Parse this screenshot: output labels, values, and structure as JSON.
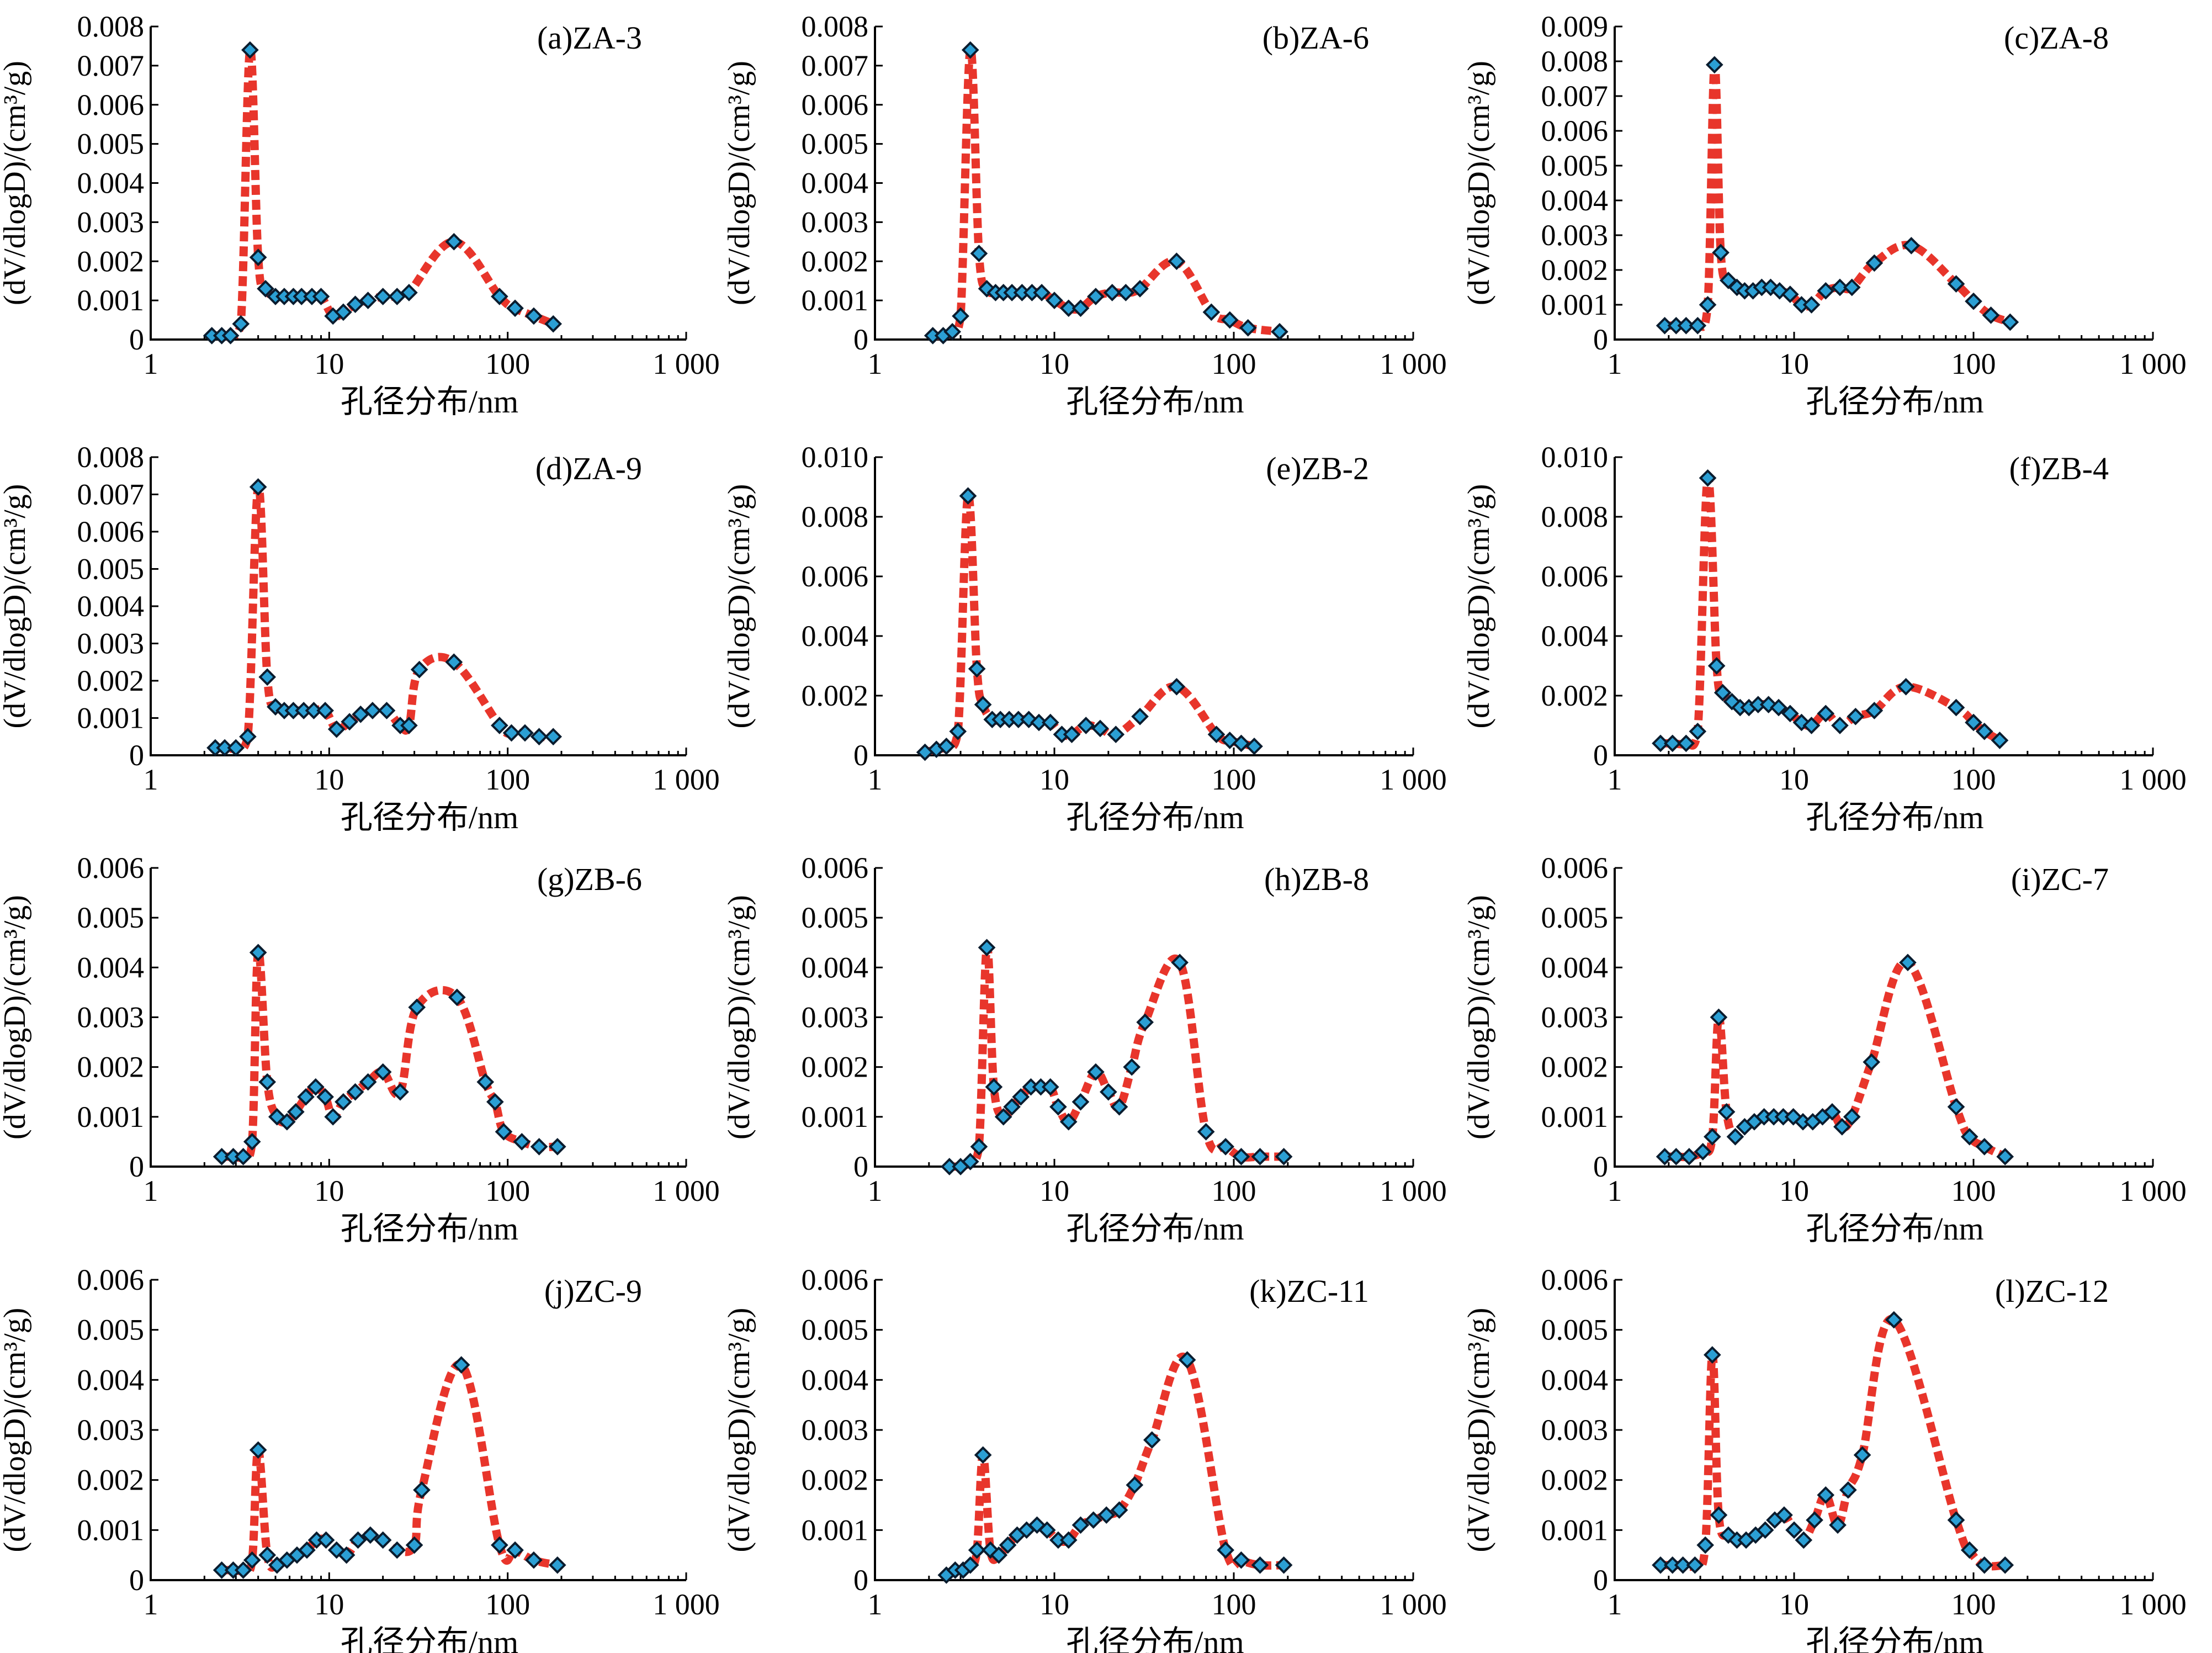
{
  "figure": {
    "colors": {
      "fit_line": "#e8352b",
      "marker_fill": "#2b9fd4",
      "marker_edge": "#0a1c2e",
      "axis": "#000000"
    },
    "marker_shape": "diamond"
  },
  "chart_data": [
    {
      "type": "line",
      "panel": "(a)ZA-3",
      "xlabel": "孔径分布/nm",
      "ylabel": "(dV/dlogD)/(cm³/g)",
      "x_scale": "log",
      "xlim": [
        1,
        1000
      ],
      "x_ticks": [
        1,
        10,
        100,
        1000
      ],
      "x_tick_labels": [
        "1",
        "10",
        "100",
        "1 000"
      ],
      "ylim": [
        0,
        0.008
      ],
      "y_ticks": [
        0,
        0.001,
        0.002,
        0.003,
        0.004,
        0.005,
        0.006,
        0.007,
        0.008
      ],
      "y_tick_labels": [
        "0",
        "0.001",
        "0.002",
        "0.003",
        "0.004",
        "0.005",
        "0.006",
        "0.007",
        "0.008"
      ],
      "x": [
        2.2,
        2.5,
        2.8,
        3.2,
        3.6,
        4.0,
        4.4,
        5.0,
        5.6,
        6.3,
        7.0,
        8.0,
        9.0,
        10.5,
        12.0,
        14.0,
        16.5,
        20.0,
        24.0,
        28.0,
        50.0,
        90.0,
        110.0,
        140.0,
        180.0
      ],
      "y": [
        0.0001,
        0.0001,
        0.0001,
        0.0004,
        0.0074,
        0.0021,
        0.0013,
        0.0011,
        0.0011,
        0.0011,
        0.0011,
        0.0011,
        0.0011,
        0.0006,
        0.0007,
        0.0009,
        0.001,
        0.0011,
        0.0011,
        0.0012,
        0.0025,
        0.0011,
        0.0008,
        0.0006,
        0.0004
      ]
    },
    {
      "type": "line",
      "panel": "(b)ZA-6",
      "xlabel": "孔径分布/nm",
      "ylabel": "(dV/dlogD)/(cm³/g)",
      "x_scale": "log",
      "xlim": [
        1,
        1000
      ],
      "x_ticks": [
        1,
        10,
        100,
        1000
      ],
      "x_tick_labels": [
        "1",
        "10",
        "100",
        "1 000"
      ],
      "ylim": [
        0,
        0.008
      ],
      "y_ticks": [
        0,
        0.001,
        0.002,
        0.003,
        0.004,
        0.005,
        0.006,
        0.007,
        0.008
      ],
      "y_tick_labels": [
        "0",
        "0.001",
        "0.002",
        "0.003",
        "0.004",
        "0.005",
        "0.006",
        "0.007",
        "0.008"
      ],
      "x": [
        2.1,
        2.4,
        2.7,
        3.0,
        3.4,
        3.8,
        4.2,
        4.7,
        5.2,
        5.8,
        6.6,
        7.5,
        8.5,
        10.0,
        12.0,
        14.0,
        17.0,
        21.0,
        25.0,
        30.0,
        48.0,
        75.0,
        95.0,
        120.0,
        180.0
      ],
      "y": [
        0.0001,
        0.0001,
        0.0002,
        0.0006,
        0.0074,
        0.0022,
        0.0013,
        0.0012,
        0.0012,
        0.0012,
        0.0012,
        0.0012,
        0.0012,
        0.001,
        0.0008,
        0.0008,
        0.0011,
        0.0012,
        0.0012,
        0.0013,
        0.002,
        0.0007,
        0.0005,
        0.0003,
        0.0002
      ]
    },
    {
      "type": "line",
      "panel": "(c)ZA-8",
      "xlabel": "孔径分布/nm",
      "ylabel": "(dV/dlogD)/(cm³/g)",
      "x_scale": "log",
      "xlim": [
        1,
        1000
      ],
      "x_ticks": [
        1,
        10,
        100,
        1000
      ],
      "x_tick_labels": [
        "1",
        "10",
        "100",
        "1 000"
      ],
      "ylim": [
        0,
        0.009
      ],
      "y_ticks": [
        0,
        0.001,
        0.002,
        0.003,
        0.004,
        0.005,
        0.006,
        0.007,
        0.008,
        0.009
      ],
      "y_tick_labels": [
        "0",
        "0.001",
        "0.002",
        "0.003",
        "0.004",
        "0.005",
        "0.006",
        "0.007",
        "0.008",
        "0.009"
      ],
      "x": [
        1.9,
        2.2,
        2.5,
        2.9,
        3.3,
        3.6,
        3.9,
        4.3,
        4.8,
        5.3,
        5.9,
        6.6,
        7.4,
        8.3,
        9.5,
        11.0,
        12.5,
        15.0,
        18.0,
        21.0,
        28.0,
        45.0,
        80.0,
        100.0,
        125.0,
        160.0
      ],
      "y": [
        0.0004,
        0.0004,
        0.0004,
        0.0004,
        0.001,
        0.0079,
        0.0025,
        0.0017,
        0.0015,
        0.0014,
        0.0014,
        0.0015,
        0.0015,
        0.0014,
        0.0013,
        0.001,
        0.001,
        0.0014,
        0.0015,
        0.0015,
        0.0022,
        0.0027,
        0.0016,
        0.0011,
        0.0007,
        0.0005
      ]
    },
    {
      "type": "line",
      "panel": "(d)ZA-9",
      "xlabel": "孔径分布/nm",
      "ylabel": "(dV/dlogD)/(cm³/g)",
      "x_scale": "log",
      "xlim": [
        1,
        1000
      ],
      "x_ticks": [
        1,
        10,
        100,
        1000
      ],
      "x_tick_labels": [
        "1",
        "10",
        "100",
        "1 000"
      ],
      "ylim": [
        0,
        0.008
      ],
      "y_ticks": [
        0,
        0.001,
        0.002,
        0.003,
        0.004,
        0.005,
        0.006,
        0.007,
        0.008
      ],
      "y_tick_labels": [
        "0",
        "0.001",
        "0.002",
        "0.003",
        "0.004",
        "0.005",
        "0.006",
        "0.007",
        "0.008"
      ],
      "x": [
        2.3,
        2.6,
        3.0,
        3.5,
        4.0,
        4.5,
        5.0,
        5.6,
        6.3,
        7.2,
        8.2,
        9.5,
        11.0,
        13.0,
        15.0,
        17.5,
        21.0,
        25.0,
        28.0,
        32.0,
        50.0,
        90.0,
        105.0,
        125.0,
        150.0,
        180.0
      ],
      "y": [
        0.0002,
        0.0002,
        0.0002,
        0.0005,
        0.0072,
        0.0021,
        0.0013,
        0.0012,
        0.0012,
        0.0012,
        0.0012,
        0.0012,
        0.0007,
        0.0009,
        0.0011,
        0.0012,
        0.0012,
        0.0008,
        0.0008,
        0.0023,
        0.0025,
        0.0008,
        0.0006,
        0.0006,
        0.0005,
        0.0005
      ]
    },
    {
      "type": "line",
      "panel": "(e)ZB-2",
      "xlabel": "孔径分布/nm",
      "ylabel": "(dV/dlogD)/(cm³/g)",
      "x_scale": "log",
      "xlim": [
        1,
        1000
      ],
      "x_ticks": [
        1,
        10,
        100,
        1000
      ],
      "x_tick_labels": [
        "1",
        "10",
        "100",
        "1 000"
      ],
      "ylim": [
        0,
        0.01
      ],
      "y_ticks": [
        0,
        0.002,
        0.004,
        0.006,
        0.008,
        0.01
      ],
      "y_tick_labels": [
        "0",
        "0.002",
        "0.004",
        "0.006",
        "0.008",
        "0.010"
      ],
      "x": [
        1.9,
        2.2,
        2.5,
        2.9,
        3.3,
        3.7,
        4.0,
        4.5,
        5.0,
        5.6,
        6.3,
        7.2,
        8.2,
        9.5,
        11.0,
        12.5,
        15.0,
        18.0,
        22.0,
        30.0,
        48.0,
        80.0,
        95.0,
        110.0,
        130.0
      ],
      "y": [
        0.0001,
        0.0002,
        0.0003,
        0.0008,
        0.0087,
        0.0029,
        0.0017,
        0.0012,
        0.0012,
        0.0012,
        0.0012,
        0.0012,
        0.0011,
        0.0011,
        0.0007,
        0.0007,
        0.001,
        0.0009,
        0.0007,
        0.0013,
        0.0023,
        0.0007,
        0.0005,
        0.0004,
        0.0003
      ]
    },
    {
      "type": "line",
      "panel": "(f)ZB-4",
      "xlabel": "孔径分布/nm",
      "ylabel": "(dV/dlogD)/(cm³/g)",
      "x_scale": "log",
      "xlim": [
        1,
        1000
      ],
      "x_ticks": [
        1,
        10,
        100,
        1000
      ],
      "x_tick_labels": [
        "1",
        "10",
        "100",
        "1 000"
      ],
      "ylim": [
        0,
        0.01
      ],
      "y_ticks": [
        0,
        0.002,
        0.004,
        0.006,
        0.008,
        0.01
      ],
      "y_tick_labels": [
        "0",
        "0.002",
        "0.004",
        "0.006",
        "0.008",
        "0.010"
      ],
      "x": [
        1.8,
        2.1,
        2.5,
        2.9,
        3.3,
        3.7,
        4.0,
        4.5,
        5.0,
        5.6,
        6.3,
        7.2,
        8.2,
        9.5,
        11.0,
        12.5,
        15.0,
        18.0,
        22.0,
        28.0,
        42.0,
        80.0,
        100.0,
        115.0,
        140.0
      ],
      "y": [
        0.0004,
        0.0004,
        0.0004,
        0.0008,
        0.0093,
        0.003,
        0.0021,
        0.0018,
        0.0016,
        0.0016,
        0.0017,
        0.0017,
        0.0016,
        0.0014,
        0.0011,
        0.001,
        0.0014,
        0.001,
        0.0013,
        0.0015,
        0.0023,
        0.0016,
        0.0011,
        0.0008,
        0.0005
      ]
    },
    {
      "type": "line",
      "panel": "(g)ZB-6",
      "xlabel": "孔径分布/nm",
      "ylabel": "(dV/dlogD)/(cm³/g)",
      "x_scale": "log",
      "xlim": [
        1,
        1000
      ],
      "x_ticks": [
        1,
        10,
        100,
        1000
      ],
      "x_tick_labels": [
        "1",
        "10",
        "100",
        "1 000"
      ],
      "ylim": [
        0,
        0.006
      ],
      "y_ticks": [
        0,
        0.001,
        0.002,
        0.003,
        0.004,
        0.005,
        0.006
      ],
      "y_tick_labels": [
        "0",
        "0.001",
        "0.002",
        "0.003",
        "0.004",
        "0.005",
        "0.006"
      ],
      "x": [
        2.5,
        2.9,
        3.3,
        3.7,
        4.0,
        4.5,
        5.1,
        5.8,
        6.5,
        7.4,
        8.4,
        9.5,
        10.5,
        12.0,
        14.0,
        16.5,
        20.0,
        25.0,
        31.0,
        52.0,
        75.0,
        85.0,
        95.0,
        120.0,
        150.0,
        190.0
      ],
      "y": [
        0.0002,
        0.0002,
        0.0002,
        0.0005,
        0.0043,
        0.0017,
        0.001,
        0.0009,
        0.0011,
        0.0014,
        0.0016,
        0.0014,
        0.001,
        0.0013,
        0.0015,
        0.0017,
        0.0019,
        0.0015,
        0.0032,
        0.0034,
        0.0017,
        0.0013,
        0.0007,
        0.0005,
        0.0004,
        0.0004
      ]
    },
    {
      "type": "line",
      "panel": "(h)ZB-8",
      "xlabel": "孔径分布/nm",
      "ylabel": "(dV/dlogD)/(cm³/g)",
      "x_scale": "log",
      "xlim": [
        1,
        1000
      ],
      "x_ticks": [
        1,
        10,
        100,
        1000
      ],
      "x_tick_labels": [
        "1",
        "10",
        "100",
        "1 000"
      ],
      "ylim": [
        0,
        0.006
      ],
      "y_ticks": [
        0,
        0.001,
        0.002,
        0.003,
        0.004,
        0.005,
        0.006
      ],
      "y_tick_labels": [
        "0",
        "0.001",
        "0.002",
        "0.003",
        "0.004",
        "0.005",
        "0.006"
      ],
      "x": [
        2.6,
        3.0,
        3.4,
        3.8,
        4.2,
        4.6,
        5.2,
        5.8,
        6.5,
        7.4,
        8.4,
        9.5,
        10.5,
        12.0,
        14.0,
        17.0,
        20.0,
        23.0,
        27.0,
        32.0,
        50.0,
        70.0,
        90.0,
        110.0,
        140.0,
        190.0
      ],
      "y": [
        0.0,
        0.0,
        0.0001,
        0.0004,
        0.0044,
        0.0016,
        0.001,
        0.0012,
        0.0014,
        0.0016,
        0.0016,
        0.0016,
        0.0012,
        0.0009,
        0.0013,
        0.0019,
        0.0015,
        0.0012,
        0.002,
        0.0029,
        0.0041,
        0.0007,
        0.0004,
        0.0002,
        0.0002,
        0.0002
      ]
    },
    {
      "type": "line",
      "panel": "(i)ZC-7",
      "xlabel": "孔径分布/nm",
      "ylabel": "(dV/dlogD)/(cm³/g)",
      "x_scale": "log",
      "xlim": [
        1,
        1000
      ],
      "x_ticks": [
        1,
        10,
        100,
        1000
      ],
      "x_tick_labels": [
        "1",
        "10",
        "100",
        "1 000"
      ],
      "ylim": [
        0,
        0.006
      ],
      "y_ticks": [
        0,
        0.001,
        0.002,
        0.003,
        0.004,
        0.005,
        0.006
      ],
      "y_tick_labels": [
        "0",
        "0.001",
        "0.002",
        "0.003",
        "0.004",
        "0.005",
        "0.006"
      ],
      "x": [
        1.9,
        2.2,
        2.6,
        3.1,
        3.5,
        3.8,
        4.2,
        4.7,
        5.3,
        6.0,
        6.8,
        7.7,
        8.7,
        9.9,
        11.2,
        12.7,
        14.4,
        16.3,
        18.5,
        21.0,
        27.0,
        43.0,
        80.0,
        95.0,
        115.0,
        150.0
      ],
      "y": [
        0.0002,
        0.0002,
        0.0002,
        0.0003,
        0.0006,
        0.003,
        0.0011,
        0.0006,
        0.0008,
        0.0009,
        0.001,
        0.001,
        0.001,
        0.001,
        0.0009,
        0.0009,
        0.001,
        0.0011,
        0.0008,
        0.001,
        0.0021,
        0.0041,
        0.0012,
        0.0006,
        0.0004,
        0.0002
      ]
    },
    {
      "type": "line",
      "panel": "(j)ZC-9",
      "xlabel": "孔径分布/nm",
      "ylabel": "(dV/dlogD)/(cm³/g)",
      "x_scale": "log",
      "xlim": [
        1,
        1000
      ],
      "x_ticks": [
        1,
        10,
        100,
        1000
      ],
      "x_tick_labels": [
        "1",
        "10",
        "100",
        "1 000"
      ],
      "ylim": [
        0,
        0.006
      ],
      "y_ticks": [
        0,
        0.001,
        0.002,
        0.003,
        0.004,
        0.005,
        0.006
      ],
      "y_tick_labels": [
        "0",
        "0.001",
        "0.002",
        "0.003",
        "0.004",
        "0.005",
        "0.006"
      ],
      "x": [
        2.5,
        2.9,
        3.3,
        3.7,
        4.0,
        4.5,
        5.1,
        5.8,
        6.6,
        7.5,
        8.5,
        9.6,
        11.0,
        12.5,
        14.5,
        17.0,
        20.0,
        24.0,
        30.0,
        33.0,
        55.0,
        90.0,
        110.0,
        140.0,
        190.0
      ],
      "y": [
        0.0002,
        0.0002,
        0.0002,
        0.0004,
        0.0026,
        0.0005,
        0.0003,
        0.0004,
        0.0005,
        0.0006,
        0.0008,
        0.0008,
        0.0006,
        0.0005,
        0.0008,
        0.0009,
        0.0008,
        0.0006,
        0.0007,
        0.0018,
        0.0043,
        0.0007,
        0.0006,
        0.0004,
        0.0003
      ]
    },
    {
      "type": "line",
      "panel": "(k)ZC-11",
      "xlabel": "孔径分布/nm",
      "ylabel": "(dV/dlogD)/(cm³/g)",
      "x_scale": "log",
      "xlim": [
        1,
        1000
      ],
      "x_ticks": [
        1,
        10,
        100,
        1000
      ],
      "x_tick_labels": [
        "1",
        "10",
        "100",
        "1 000"
      ],
      "ylim": [
        0,
        0.006
      ],
      "y_ticks": [
        0,
        0.001,
        0.002,
        0.003,
        0.004,
        0.005,
        0.006
      ],
      "y_tick_labels": [
        "0",
        "0.001",
        "0.002",
        "0.003",
        "0.004",
        "0.005",
        "0.006"
      ],
      "x": [
        2.5,
        2.8,
        3.1,
        3.4,
        3.7,
        4.0,
        4.4,
        4.9,
        5.5,
        6.2,
        7.0,
        8.0,
        9.1,
        10.5,
        12.0,
        14.0,
        16.5,
        19.5,
        23.0,
        28.0,
        35.0,
        55.0,
        90.0,
        110.0,
        140.0,
        190.0
      ],
      "y": [
        0.0001,
        0.0002,
        0.0002,
        0.0003,
        0.0006,
        0.0025,
        0.0006,
        0.0005,
        0.0007,
        0.0009,
        0.001,
        0.0011,
        0.001,
        0.0008,
        0.0008,
        0.0011,
        0.0012,
        0.0013,
        0.0014,
        0.0019,
        0.0028,
        0.0044,
        0.0006,
        0.0004,
        0.0003,
        0.0003
      ]
    },
    {
      "type": "line",
      "panel": "(l)ZC-12",
      "xlabel": "孔径分布/nm",
      "ylabel": "(dV/dlogD)/(cm³/g)",
      "x_scale": "log",
      "xlim": [
        1,
        1000
      ],
      "x_ticks": [
        1,
        10,
        100,
        1000
      ],
      "x_tick_labels": [
        "1",
        "10",
        "100",
        "1 000"
      ],
      "ylim": [
        0,
        0.006
      ],
      "y_ticks": [
        0,
        0.001,
        0.002,
        0.003,
        0.004,
        0.005,
        0.006
      ],
      "y_tick_labels": [
        "0",
        "0.001",
        "0.002",
        "0.003",
        "0.004",
        "0.005",
        "0.006"
      ],
      "x": [
        1.8,
        2.1,
        2.4,
        2.8,
        3.2,
        3.5,
        3.8,
        4.3,
        4.8,
        5.4,
        6.1,
        6.9,
        7.8,
        8.8,
        10.0,
        11.3,
        13.0,
        15.0,
        17.5,
        20.0,
        24.0,
        36.0,
        80.0,
        95.0,
        115.0,
        150.0
      ],
      "y": [
        0.0003,
        0.0003,
        0.0003,
        0.0003,
        0.0007,
        0.0045,
        0.0013,
        0.0009,
        0.0008,
        0.0008,
        0.0009,
        0.001,
        0.0012,
        0.0013,
        0.001,
        0.0008,
        0.0012,
        0.0017,
        0.0011,
        0.0018,
        0.0025,
        0.0052,
        0.0012,
        0.0006,
        0.0003,
        0.0003
      ]
    }
  ]
}
